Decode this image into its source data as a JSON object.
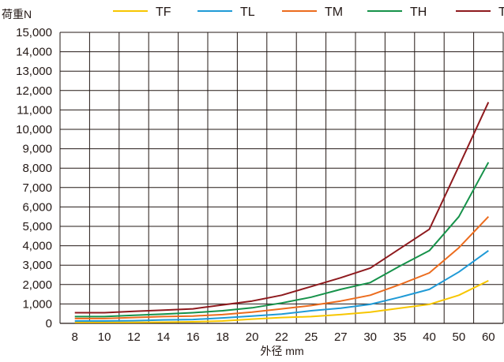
{
  "chart_data": {
    "type": "line",
    "ylabel": "荷重N",
    "xlabel": "外径 mm",
    "categories": [
      "8",
      "10",
      "12",
      "14",
      "16",
      "18",
      "20",
      "22",
      "25",
      "27",
      "30",
      "35",
      "40",
      "50",
      "60"
    ],
    "ylim": [
      0,
      15000
    ],
    "yticks": [
      "0",
      "1,000",
      "2,000",
      "3,000",
      "4,000",
      "5,000",
      "6,000",
      "7,000",
      "8,000",
      "9,000",
      "10,000",
      "11,000",
      "12,000",
      "13,000",
      "14,000",
      "15,000"
    ],
    "grid": true,
    "legend_position": "top",
    "series": [
      {
        "name": "TF",
        "color": "#f7c600",
        "values": [
          50,
          50,
          50,
          60,
          80,
          120,
          220,
          300,
          350,
          450,
          580,
          780,
          980,
          1450,
          2200
        ]
      },
      {
        "name": "TL",
        "color": "#1f9ad6",
        "values": [
          120,
          120,
          140,
          180,
          200,
          280,
          380,
          480,
          650,
          780,
          980,
          1350,
          1750,
          2650,
          3750
        ]
      },
      {
        "name": "TM",
        "color": "#ec6c1e",
        "values": [
          250,
          250,
          300,
          350,
          380,
          450,
          580,
          750,
          920,
          1150,
          1450,
          2000,
          2600,
          3900,
          5500
        ]
      },
      {
        "name": "TH",
        "color": "#16924a",
        "values": [
          350,
          350,
          420,
          480,
          550,
          650,
          800,
          1050,
          1350,
          1750,
          2100,
          2950,
          3750,
          5500,
          8300
        ]
      },
      {
        "name": "TB",
        "color": "#8e1a1e",
        "values": [
          550,
          550,
          620,
          680,
          750,
          950,
          1150,
          1450,
          1900,
          2350,
          2850,
          3850,
          4850,
          8100,
          11400
        ]
      }
    ]
  }
}
